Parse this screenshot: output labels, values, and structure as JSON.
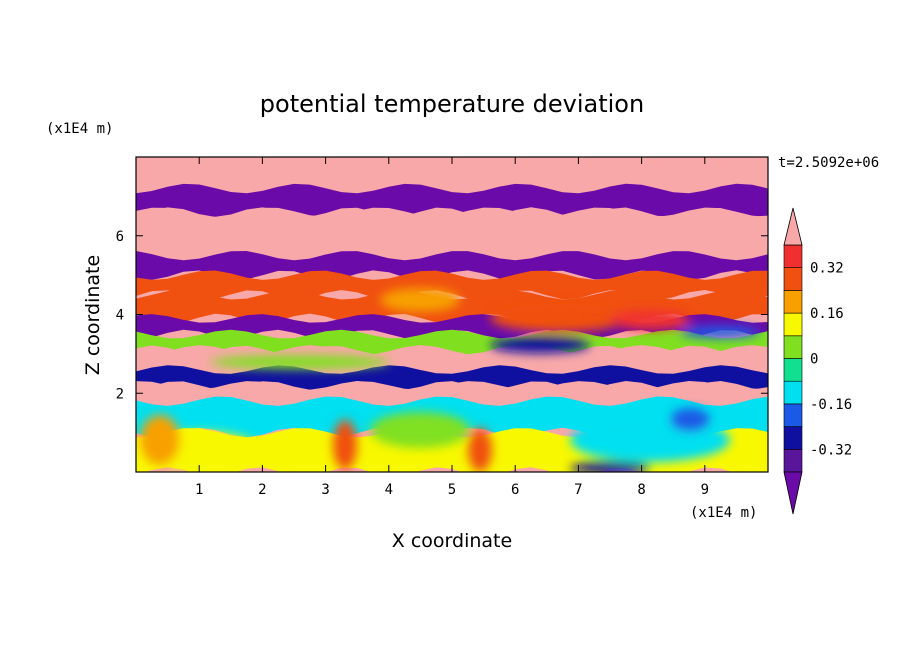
{
  "chart_data": {
    "type": "heatmap",
    "title": "potential temperature deviation",
    "xlabel": "X coordinate",
    "ylabel": "Z coordinate",
    "x_unit": "(x1E4 m)",
    "y_unit": "(x1E4 m)",
    "time_label": "t=2.5092e+06",
    "xlim": [
      0,
      10
    ],
    "ylim": [
      0,
      8
    ],
    "x_ticks": [
      1,
      2,
      3,
      4,
      5,
      6,
      7,
      8,
      9
    ],
    "y_ticks": [
      2,
      4,
      6
    ],
    "colorbar": {
      "levels": [
        -0.4,
        -0.32,
        -0.24,
        -0.16,
        -0.08,
        0,
        0.08,
        0.16,
        0.24,
        0.32,
        0.4
      ],
      "labeled": [
        "0.32",
        "0.16",
        "0",
        "-0.16",
        "-0.32"
      ],
      "labeled_values": [
        0.32,
        0.16,
        0,
        -0.16,
        -0.32
      ],
      "colors_low_to_high": [
        "#5a169a",
        "#1010a0",
        "#1a5ae6",
        "#00e0f0",
        "#10e090",
        "#80e020",
        "#f8f800",
        "#f8a000",
        "#f05010",
        "#f03030",
        "#f8a8a8"
      ],
      "under_color": "#6a0aa8",
      "over_color": "#f8a8a8"
    },
    "field_bands": [
      {
        "z": [
          7.2,
          8.0
        ],
        "value": 0.45
      },
      {
        "z": [
          6.6,
          7.2
        ],
        "value": -0.45
      },
      {
        "z": [
          5.5,
          6.6
        ],
        "value": 0.45
      },
      {
        "z": [
          5.0,
          5.5
        ],
        "value": -0.45
      },
      {
        "z": [
          4.5,
          5.0
        ],
        "value": 0.3
      },
      {
        "z": [
          3.9,
          4.5
        ],
        "value": 0.28
      },
      {
        "z": [
          3.5,
          3.9
        ],
        "value": -0.45
      },
      {
        "z": [
          3.1,
          3.5
        ],
        "value": 0.05
      },
      {
        "z": [
          2.6,
          3.1
        ],
        "value": 0.45
      },
      {
        "z": [
          2.2,
          2.6
        ],
        "value": -0.3
      },
      {
        "z": [
          1.8,
          2.2
        ],
        "value": 0.45
      },
      {
        "z": [
          1.0,
          1.8
        ],
        "value": -0.15
      },
      {
        "z": [
          0.0,
          1.0
        ],
        "value": 0.1
      }
    ]
  }
}
